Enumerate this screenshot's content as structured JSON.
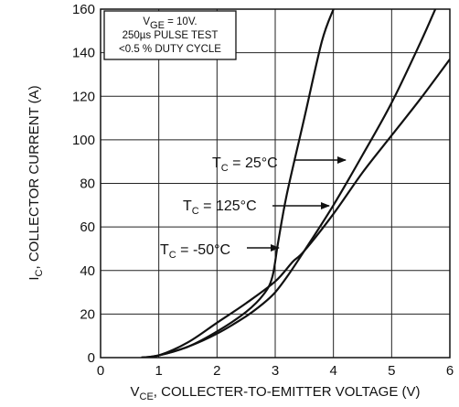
{
  "chart_data": {
    "type": "line",
    "title": "",
    "xlabel": "V<sub>CE</sub>, COLLECTER-TO-EMITTER VOLTAGE (V)",
    "ylabel": "I<sub>C</sub>, COLLECTOR CURRENT (A)",
    "xlim": [
      0,
      6
    ],
    "ylim": [
      0,
      160
    ],
    "xticks": [
      "0",
      "1",
      "2",
      "3",
      "4",
      "5",
      "6"
    ],
    "yticks": [
      "0",
      "20",
      "40",
      "60",
      "80",
      "100",
      "120",
      "140",
      "160"
    ],
    "grid": true,
    "conditions_box": [
      "V<sub>GE</sub> = 10V.",
      "250µs PULSE TEST",
      "<0.5 % DUTY CYCLE"
    ],
    "series": [
      {
        "name": "T<sub>C</sub> = 25°C",
        "x": [
          0.7,
          1.0,
          1.5,
          2.0,
          2.5,
          2.8,
          3.0,
          3.2,
          3.5,
          4.0,
          4.5,
          5.0,
          5.5,
          5.75
        ],
        "y": [
          0,
          1,
          5,
          11,
          19,
          25,
          30,
          37,
          49,
          70,
          93,
          117,
          145,
          160
        ]
      },
      {
        "name": "T<sub>C</sub> = 125°C",
        "x": [
          0.7,
          1.0,
          1.5,
          2.0,
          2.5,
          3.0,
          3.3,
          3.5,
          4.0,
          4.5,
          5.0,
          5.5,
          6.0
        ],
        "y": [
          0,
          1,
          7,
          16,
          25,
          35,
          44,
          49,
          66,
          85,
          102,
          119,
          137
        ]
      },
      {
        "name": "T<sub>C</sub> = -50°C",
        "x": [
          0.7,
          1.0,
          1.5,
          2.0,
          2.5,
          2.8,
          2.95,
          3.05,
          3.2,
          3.5,
          3.8,
          4.0
        ],
        "y": [
          0,
          1,
          5,
          12,
          21,
          29,
          37,
          53,
          75,
          110,
          145,
          160
        ]
      }
    ],
    "annotations": [
      "T<sub>C</sub> = 25°C",
      "T<sub>C</sub> = 125°C",
      "T<sub>C</sub> = -50°C"
    ]
  }
}
